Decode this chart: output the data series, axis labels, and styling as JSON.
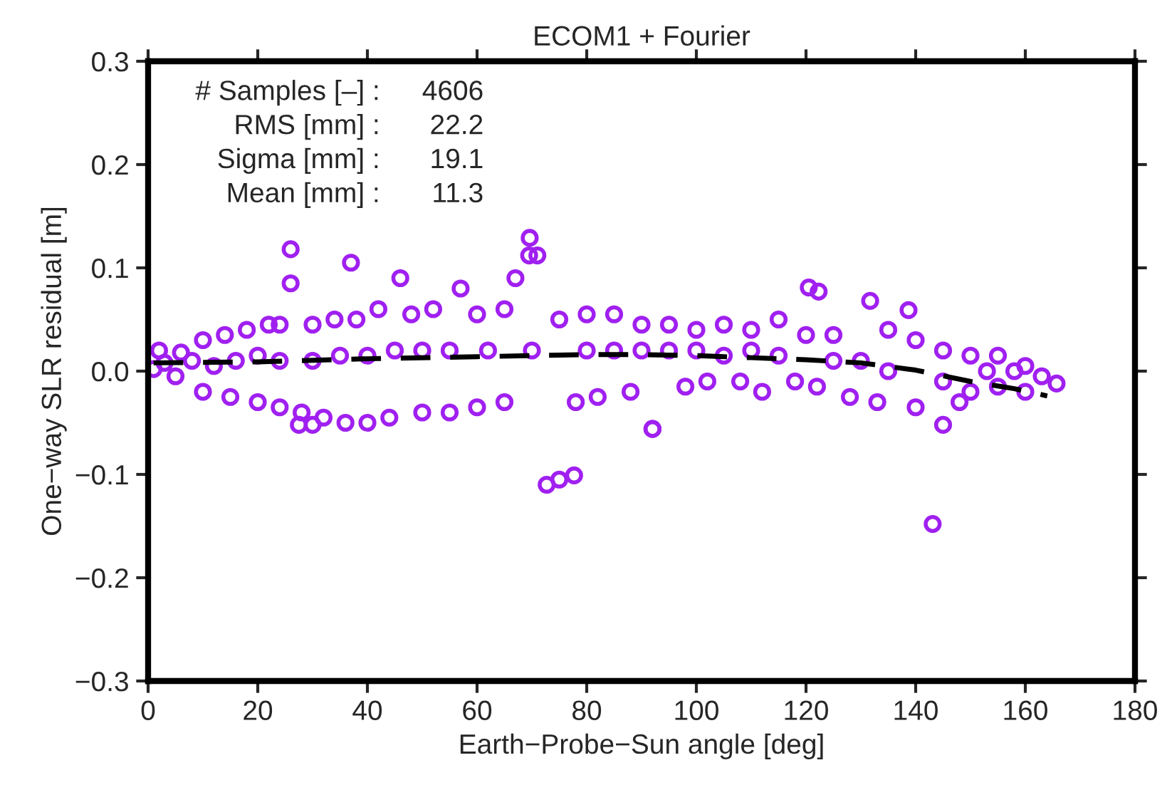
{
  "chart_data": {
    "type": "scatter",
    "title": "ECOM1 + Fourier",
    "xlabel": "Earth−Probe−Sun angle [deg]",
    "ylabel": "One−way SLR residual [m]",
    "xlim": [
      0,
      180
    ],
    "xticks": [
      0,
      20,
      40,
      60,
      80,
      100,
      120,
      140,
      160,
      180
    ],
    "ylim": [
      -0.3,
      0.3
    ],
    "yticks": [
      {
        "value": -0.3,
        "label": "−0.3"
      },
      {
        "value": -0.2,
        "label": "−0.2"
      },
      {
        "value": -0.1,
        "label": "−0.1"
      },
      {
        "value": 0.0,
        "label": "0.0"
      },
      {
        "value": 0.1,
        "label": "0.1"
      },
      {
        "value": 0.2,
        "label": "0.2"
      },
      {
        "value": 0.3,
        "label": "0.3"
      }
    ],
    "grid": false,
    "legend": false,
    "annotations": [
      "# Samples [–] :",
      "RMS [mm] :",
      "Sigma [mm] :",
      "Mean [mm] :",
      "4606",
      "22.2",
      "19.1",
      "11.3"
    ],
    "series": [
      {
        "color": "#a020f0",
        "marker": "circle",
        "x": [
          1,
          2,
          3,
          5,
          6,
          8,
          10,
          10,
          12,
          14,
          15,
          16,
          18,
          20,
          20,
          22,
          24,
          24,
          26,
          26,
          24,
          28,
          30,
          30,
          32,
          34,
          35,
          36,
          37,
          38,
          40,
          40,
          42,
          44,
          45,
          46,
          48,
          50,
          50,
          52,
          55,
          55,
          57,
          60,
          60,
          62,
          65,
          65,
          67,
          69.6,
          69.5,
          71,
          70,
          72.7,
          75,
          77.7,
          75,
          78,
          80,
          80,
          82,
          85,
          85,
          88,
          90,
          90,
          92,
          95,
          95,
          98,
          100,
          100,
          102,
          105,
          105,
          108,
          110,
          110,
          112,
          115,
          115,
          118,
          120.5,
          122.3,
          120,
          122,
          125,
          125,
          128,
          131.7,
          130,
          133,
          135,
          135,
          138.7,
          140,
          140,
          143.1,
          145,
          145,
          148,
          150,
          150,
          153,
          155,
          155,
          158,
          160,
          160,
          163,
          165.7,
          27.5,
          30,
          92,
          145
        ],
        "values": [
          0.002,
          0.02,
          0.008,
          -0.005,
          0.018,
          0.01,
          0.03,
          -0.02,
          0.005,
          0.035,
          -0.025,
          0.01,
          0.04,
          -0.03,
          0.015,
          0.045,
          -0.035,
          0.01,
          0.118,
          0.085,
          0.045,
          -0.04,
          0.045,
          0.01,
          -0.045,
          0.05,
          0.015,
          -0.05,
          0.105,
          0.05,
          -0.05,
          0.015,
          0.06,
          -0.045,
          0.02,
          0.09,
          0.055,
          -0.04,
          0.02,
          0.06,
          -0.04,
          0.02,
          0.08,
          0.055,
          -0.035,
          0.02,
          0.06,
          -0.03,
          0.09,
          0.129,
          0.112,
          0.112,
          0.02,
          -0.11,
          -0.105,
          -0.101,
          0.05,
          -0.03,
          0.055,
          0.02,
          -0.025,
          0.055,
          0.02,
          -0.02,
          0.045,
          0.02,
          -0.056,
          0.045,
          0.02,
          -0.015,
          0.04,
          0.02,
          -0.01,
          0.045,
          0.015,
          -0.01,
          0.04,
          0.02,
          -0.02,
          0.05,
          0.015,
          -0.01,
          0.081,
          0.077,
          0.035,
          -0.015,
          0.035,
          0.01,
          -0.025,
          0.068,
          0.01,
          -0.03,
          0.04,
          0.0,
          0.059,
          0.03,
          -0.035,
          -0.148,
          0.02,
          -0.01,
          -0.03,
          0.015,
          -0.02,
          0.0,
          0.015,
          -0.015,
          0.0,
          0.005,
          -0.02,
          -0.005,
          -0.012,
          -0.052,
          -0.052,
          -0.056,
          -0.052
        ]
      },
      {
        "type": "line",
        "color": "#000000",
        "line_style": "dashed",
        "marker": "none",
        "x": [
          1,
          20,
          40,
          60,
          80,
          90,
          100,
          110,
          120,
          130,
          140,
          150,
          158,
          164
        ],
        "values": [
          0.008,
          0.009,
          0.012,
          0.014,
          0.016,
          0.016,
          0.015,
          0.013,
          0.011,
          0.008,
          0.001,
          -0.01,
          -0.017,
          -0.024
        ]
      }
    ]
  }
}
